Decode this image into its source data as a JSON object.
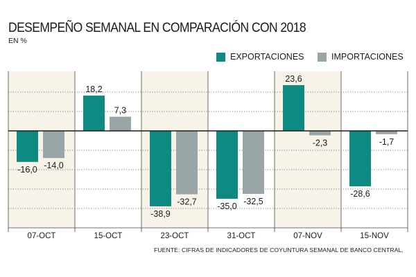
{
  "header": {
    "title": "DESEMPEÑO SEMANAL EN COMPARACIÓN CON 2018",
    "subtitle": "EN %"
  },
  "legend": {
    "exports_label": "EXPORTACIONES",
    "imports_label": "IMPORTACIONES"
  },
  "colors": {
    "exports": "#0f8a82",
    "imports": "#9aa5a8",
    "panel_odd": "#f7f3e8",
    "panel_even": "#ffffff",
    "grid": "#555555"
  },
  "footer": {
    "source": "FUENTE:  CIFRAS DE INDICADORES DE COYUNTURA SEMANAL DE BANCO CENTRAL."
  },
  "chart_data": {
    "type": "bar",
    "title": "DESEMPEÑO SEMANAL EN COMPARACIÓN CON 2018",
    "ylabel": "EN %",
    "xlabel": "",
    "categories": [
      "07-OCT",
      "15-OCT",
      "23-OCT",
      "31-OCT",
      "07-NOV",
      "15-NOV"
    ],
    "series": [
      {
        "name": "EXPORTACIONES",
        "values": [
          -16.0,
          18.2,
          -38.9,
          -35.0,
          23.6,
          -28.6
        ],
        "labels": [
          "-16,0",
          "18,2",
          "-38,9",
          "-35,0",
          "23,6",
          "-28,6"
        ]
      },
      {
        "name": "IMPORTACIONES",
        "values": [
          -14.0,
          7.3,
          -32.7,
          -32.5,
          -2.3,
          -1.7
        ],
        "labels": [
          "-14,0",
          "7,3",
          "-32,7",
          "-32,5",
          "-2,3",
          "-1,7"
        ]
      }
    ],
    "ylim": [
      -50,
      30
    ],
    "grid": true,
    "legend_position": "top-right"
  }
}
